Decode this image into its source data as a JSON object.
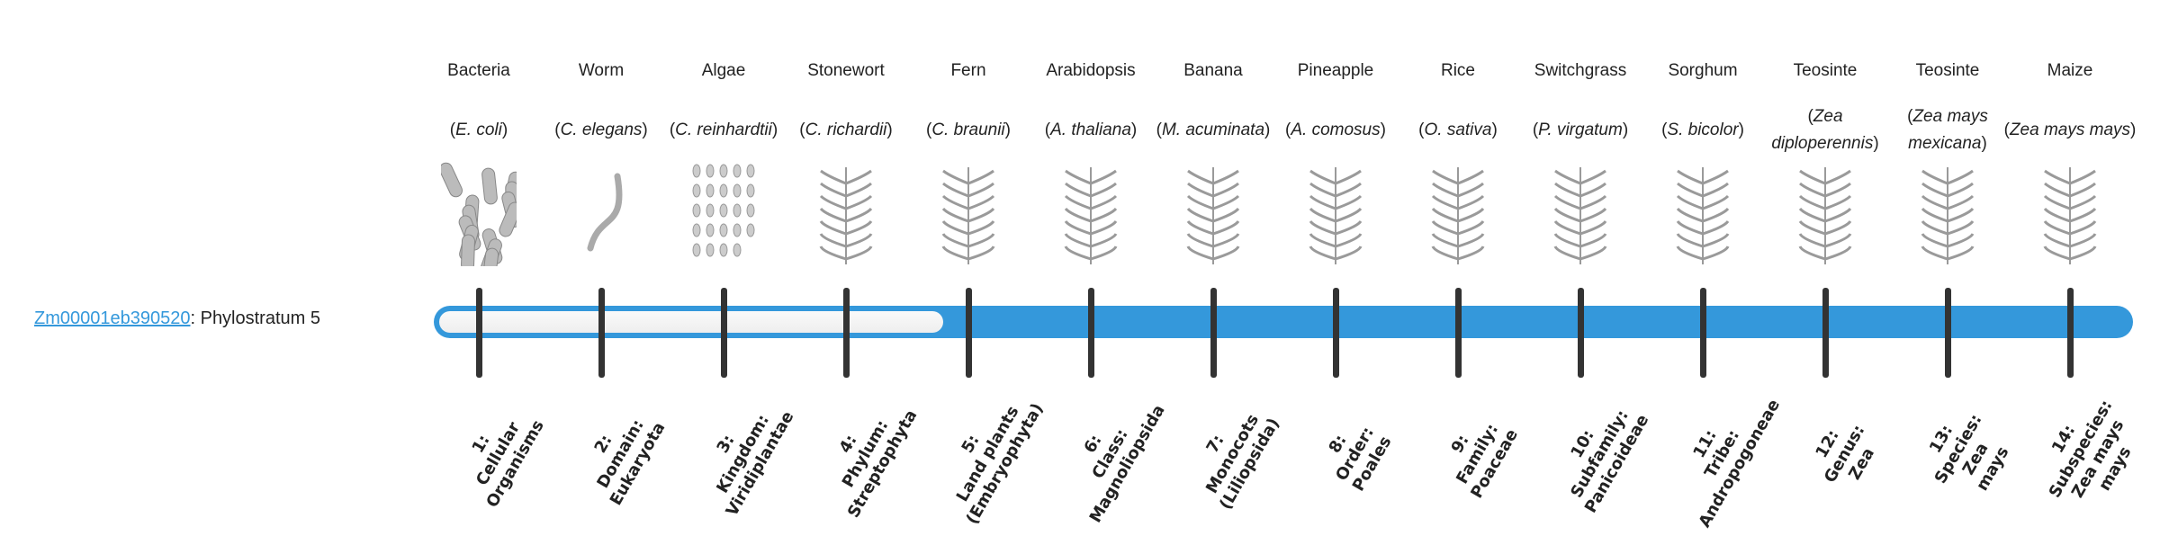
{
  "gene": {
    "id": "Zm00001eb390520",
    "suffix": ": Phylostratum 5"
  },
  "phylostratum": {
    "value": 5,
    "total": 14
  },
  "colors": {
    "accent": "#3498db",
    "tick": "#333333",
    "empty": "#f4f4f4"
  },
  "organisms": [
    {
      "common": "Bacteria",
      "sci": "E. coli",
      "icon": "rod-bacteria-illustration",
      "stratum": "1:\nCellular\nOrganisms"
    },
    {
      "common": "Worm",
      "sci": "C. elegans",
      "icon": "worm-illustration",
      "stratum": "2:\nDomain:\nEukaryota"
    },
    {
      "common": "Algae",
      "sci": "C. reinhardtii",
      "icon": "algae-illustration",
      "stratum": "3:\nKingdom:\nViridiplantae"
    },
    {
      "common": "Stonewort",
      "sci": "C. richardii",
      "icon": "stonewort-illustration",
      "stratum": "4:\nPhylum:\nStreptophyta"
    },
    {
      "common": "Fern",
      "sci": "C. braunii",
      "icon": "fern-illustration",
      "stratum": "5:\nLand plants\n(Embryophyta)"
    },
    {
      "common": "Arabidopsis",
      "sci": "A. thaliana",
      "icon": "arabidopsis-illustration",
      "stratum": "6:\nClass:\nMagnoliopsida"
    },
    {
      "common": "Banana",
      "sci": "M. acuminata",
      "icon": "banana-illustration",
      "stratum": "7:\nMonocots\n(Liliopsida)"
    },
    {
      "common": "Pineapple",
      "sci": "A. comosus",
      "icon": "pineapple-illustration",
      "stratum": "8:\nOrder:\nPoales"
    },
    {
      "common": "Rice",
      "sci": "O. sativa",
      "icon": "rice-illustration",
      "stratum": "9:\nFamily:\nPoaceae"
    },
    {
      "common": "Switchgrass",
      "sci": "P. virgatum",
      "icon": "switchgrass-illustration",
      "stratum": "10:\nSubfamily:\nPanicoideae"
    },
    {
      "common": "Sorghum",
      "sci": "S. bicolor",
      "icon": "sorghum-illustration",
      "stratum": "11:\nTribe:\nAndropogoneae"
    },
    {
      "common": "Teosinte",
      "sci": "Zea diploperennis",
      "icon": "teosinte-illustration",
      "stratum": "12:\nGenus:\nZea"
    },
    {
      "common": "Teosinte",
      "sci": "Zea mays mexicana",
      "icon": "teosinte-illustration",
      "stratum": "13:\nSpecies:\nZea\nmays"
    },
    {
      "common": "Maize",
      "sci": "Zea mays mays",
      "icon": "maize-illustration",
      "stratum": "14:\nSubspecies:\nZea mays\nmays"
    }
  ]
}
